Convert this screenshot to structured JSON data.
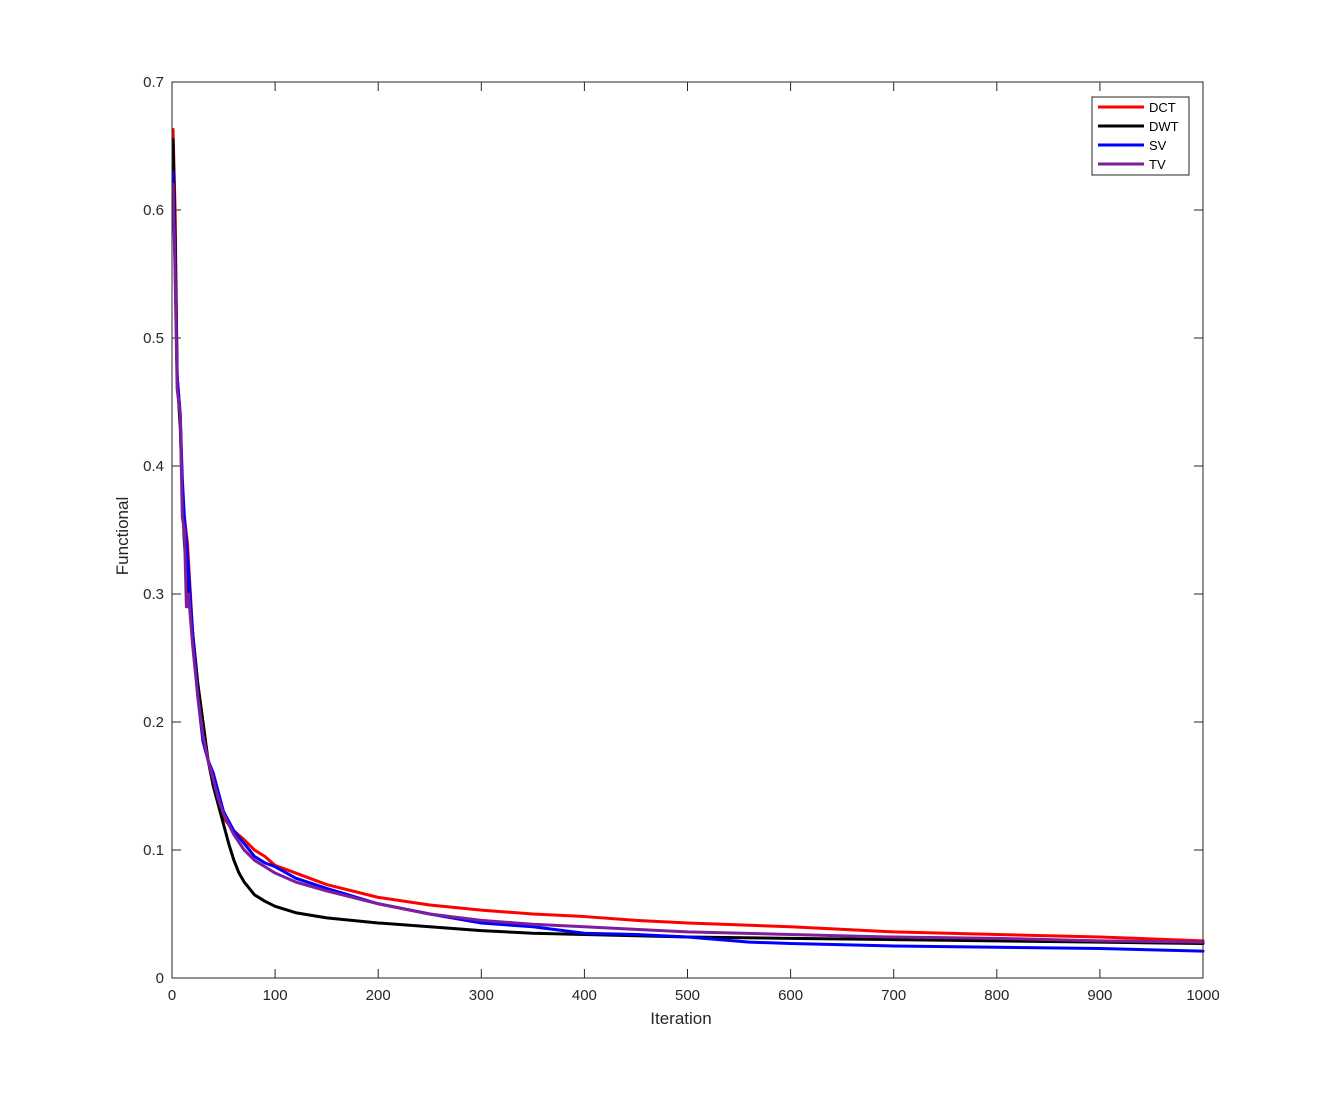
{
  "chart_data": {
    "type": "line",
    "title": "",
    "xlabel": "Iteration",
    "ylabel": "Functional",
    "xlim": [
      0,
      1000
    ],
    "ylim": [
      0,
      0.7
    ],
    "xticks": [
      0,
      100,
      200,
      300,
      400,
      500,
      600,
      700,
      800,
      900,
      1000
    ],
    "xtick_labels": [
      "0",
      "100",
      "200",
      "300",
      "400",
      "500",
      "600",
      "700",
      "800",
      "900",
      "1000"
    ],
    "yticks": [
      0,
      0.1,
      0.2,
      0.3,
      0.4,
      0.5,
      0.6,
      0.7
    ],
    "ytick_labels": [
      "0",
      "0.1",
      "0.2",
      "0.3",
      "0.4",
      "0.5",
      "0.6",
      "0.7"
    ],
    "grid": false,
    "legend_position": "top-right",
    "series": [
      {
        "name": "DCT",
        "color": "#ff0000",
        "x": [
          1,
          3,
          5,
          8,
          10,
          12,
          15,
          20,
          25,
          30,
          35,
          40,
          45,
          50,
          60,
          70,
          80,
          90,
          100,
          120,
          150,
          200,
          250,
          300,
          350,
          400,
          450,
          500,
          600,
          700,
          800,
          900,
          1000
        ],
        "y": [
          0.663,
          0.6,
          0.47,
          0.44,
          0.38,
          0.36,
          0.34,
          0.27,
          0.23,
          0.2,
          0.17,
          0.16,
          0.14,
          0.125,
          0.115,
          0.108,
          0.1,
          0.095,
          0.088,
          0.082,
          0.073,
          0.063,
          0.057,
          0.053,
          0.05,
          0.048,
          0.045,
          0.043,
          0.04,
          0.036,
          0.034,
          0.032,
          0.029
        ]
      },
      {
        "name": "DWT",
        "color": "#000000",
        "x": [
          1,
          3,
          5,
          8,
          10,
          12,
          15,
          20,
          25,
          30,
          35,
          40,
          45,
          50,
          55,
          60,
          65,
          70,
          80,
          90,
          100,
          120,
          150,
          200,
          250,
          300,
          350,
          400,
          450,
          500,
          600,
          700,
          800,
          900,
          1000
        ],
        "y": [
          0.655,
          0.58,
          0.47,
          0.43,
          0.38,
          0.34,
          0.31,
          0.27,
          0.23,
          0.2,
          0.17,
          0.15,
          0.135,
          0.12,
          0.105,
          0.092,
          0.082,
          0.075,
          0.065,
          0.06,
          0.056,
          0.051,
          0.047,
          0.043,
          0.04,
          0.037,
          0.035,
          0.034,
          0.033,
          0.032,
          0.031,
          0.03,
          0.029,
          0.028,
          0.027
        ]
      },
      {
        "name": "SV",
        "color": "#0000ff",
        "x": [
          1,
          3,
          5,
          8,
          10,
          12,
          15,
          20,
          25,
          30,
          35,
          40,
          45,
          50,
          60,
          70,
          80,
          90,
          100,
          120,
          150,
          200,
          250,
          300,
          350,
          400,
          450,
          500,
          560,
          600,
          700,
          800,
          900,
          1000
        ],
        "y": [
          0.63,
          0.56,
          0.47,
          0.44,
          0.39,
          0.36,
          0.33,
          0.27,
          0.22,
          0.185,
          0.17,
          0.16,
          0.145,
          0.13,
          0.115,
          0.105,
          0.095,
          0.09,
          0.087,
          0.078,
          0.07,
          0.058,
          0.05,
          0.043,
          0.04,
          0.035,
          0.034,
          0.032,
          0.028,
          0.027,
          0.025,
          0.024,
          0.023,
          0.021
        ]
      },
      {
        "name": "TV",
        "color": "#7e1e9c",
        "x": [
          1,
          3,
          5,
          8,
          10,
          12,
          14,
          15,
          16,
          20,
          25,
          30,
          35,
          40,
          45,
          50,
          60,
          70,
          80,
          90,
          100,
          120,
          150,
          200,
          250,
          300,
          350,
          400,
          450,
          500,
          600,
          700,
          800,
          900,
          1000
        ],
        "y": [
          0.62,
          0.55,
          0.46,
          0.44,
          0.36,
          0.35,
          0.29,
          0.29,
          0.3,
          0.26,
          0.22,
          0.19,
          0.17,
          0.155,
          0.14,
          0.128,
          0.112,
          0.1,
          0.092,
          0.087,
          0.082,
          0.075,
          0.068,
          0.058,
          0.05,
          0.045,
          0.042,
          0.04,
          0.038,
          0.036,
          0.034,
          0.032,
          0.031,
          0.029,
          0.028
        ]
      }
    ]
  }
}
